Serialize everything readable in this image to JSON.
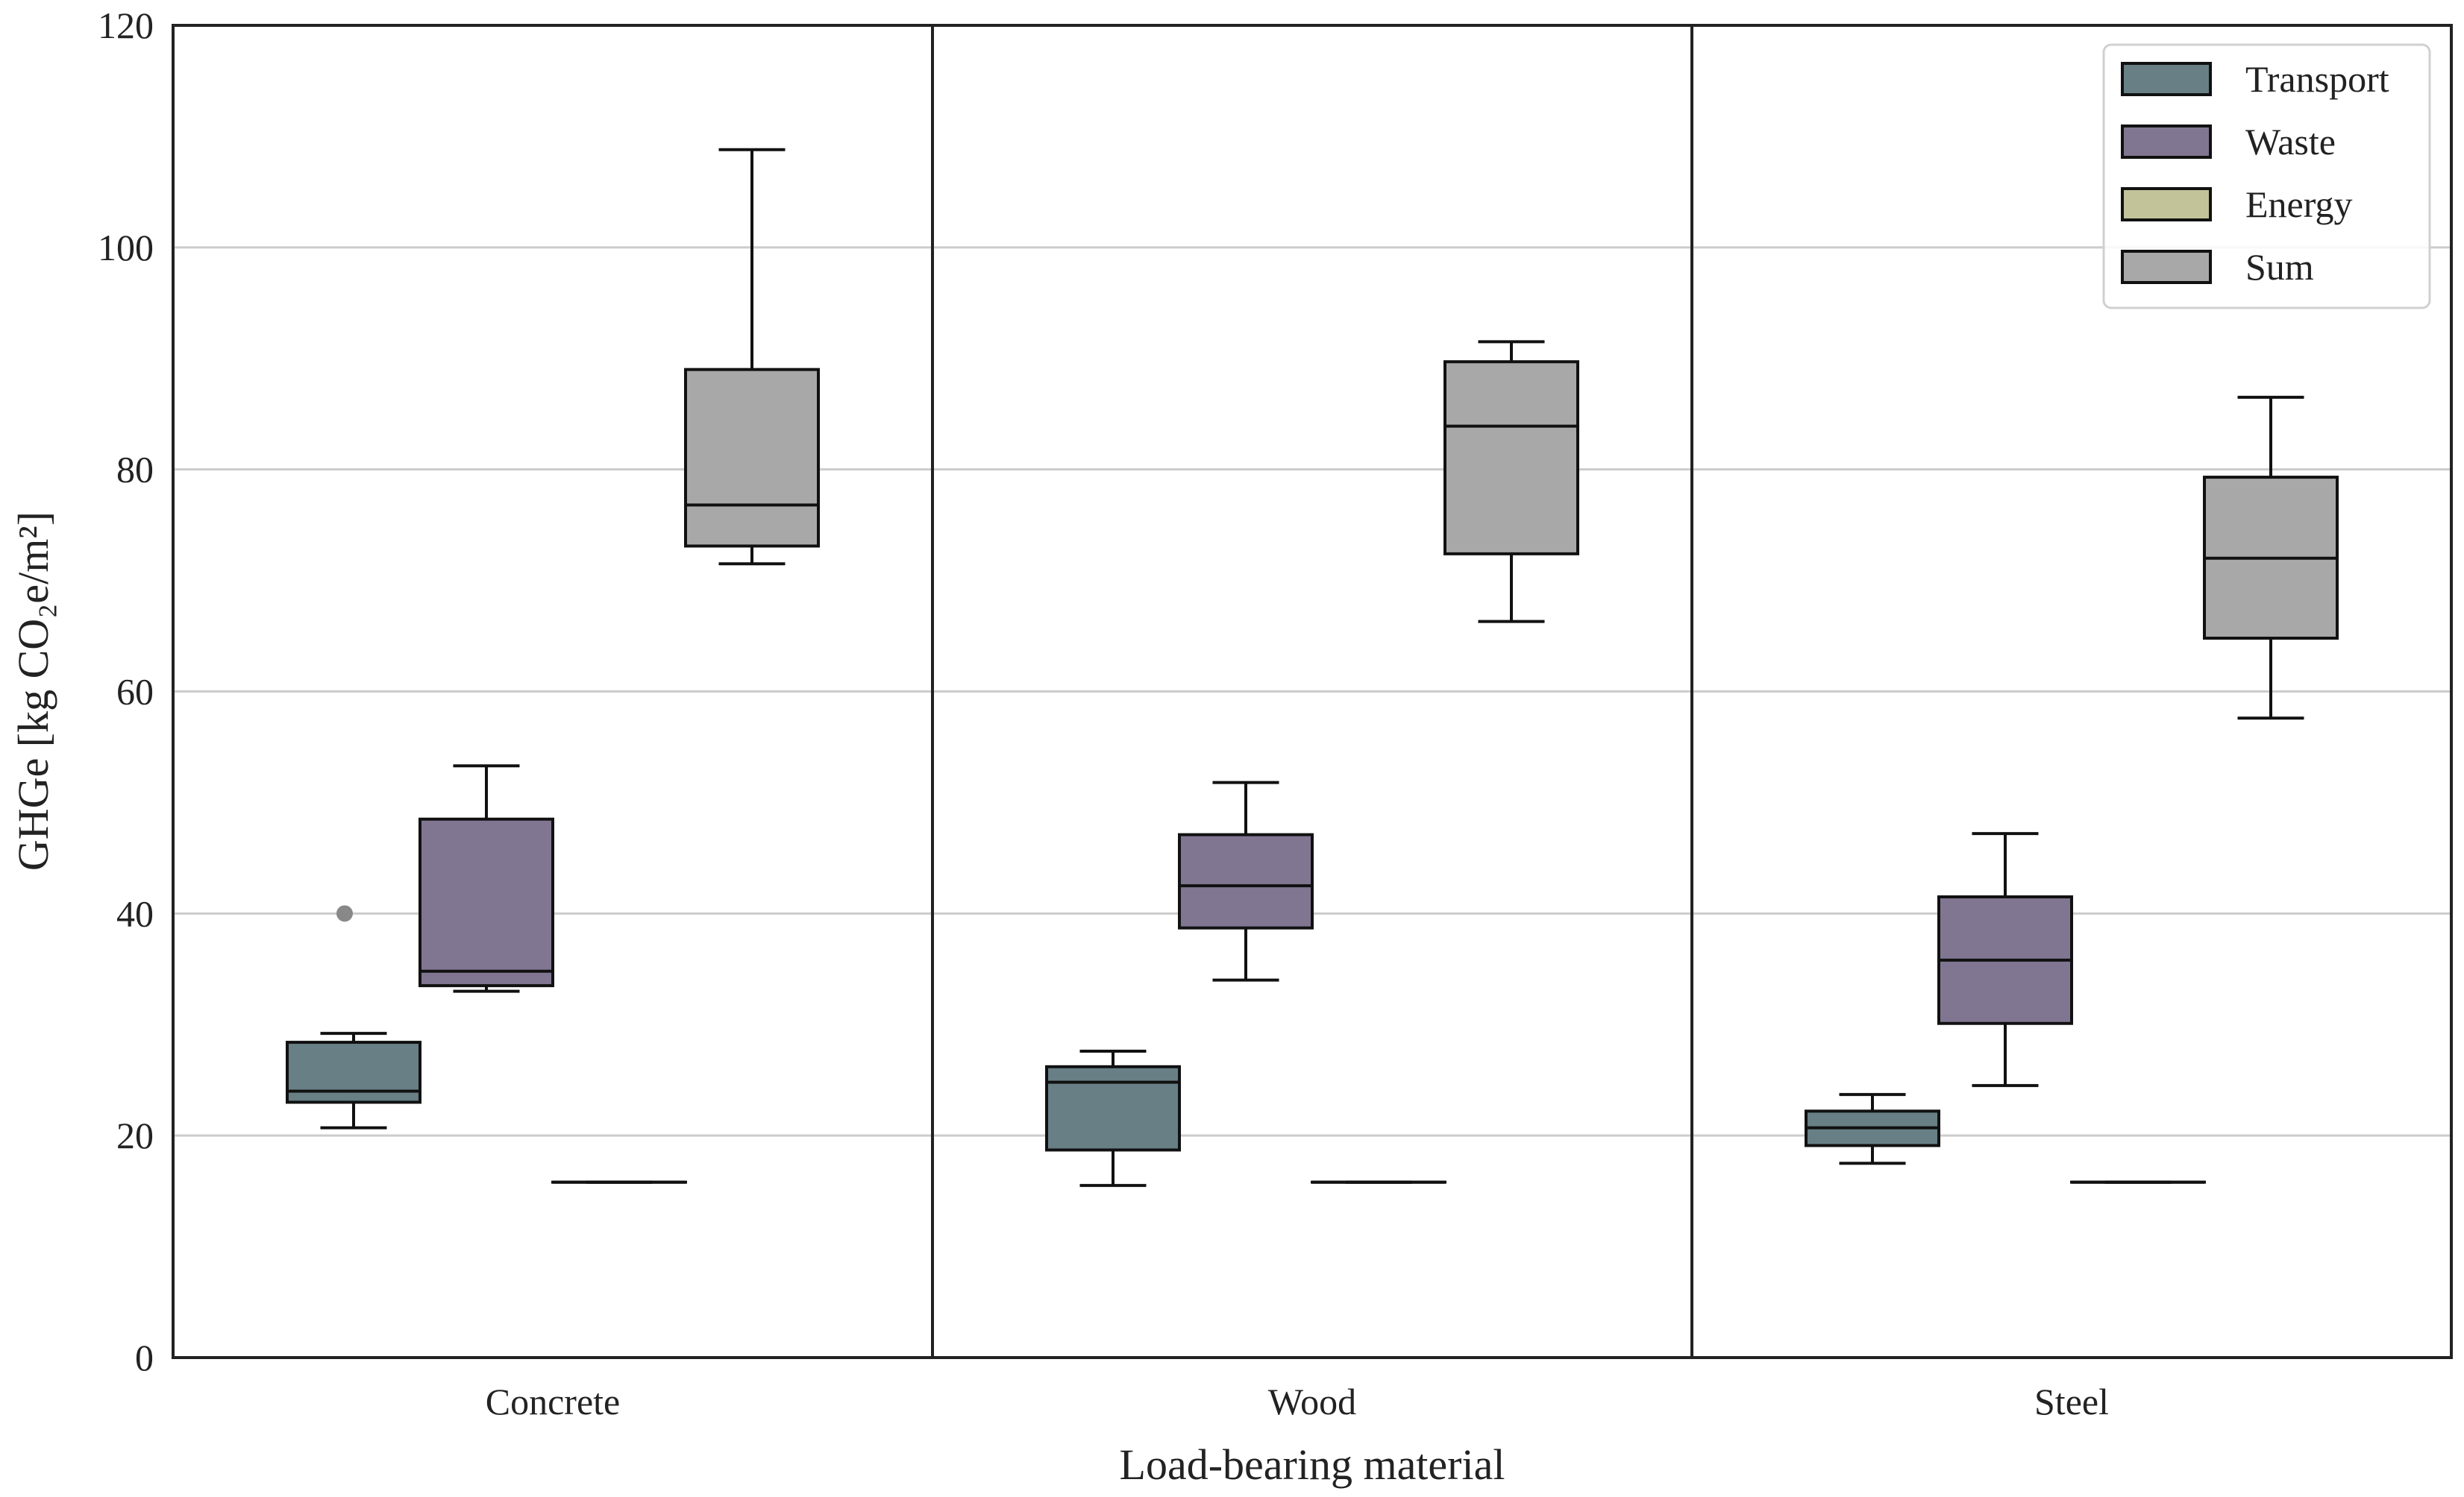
{
  "chart_data": {
    "type": "box",
    "title": "",
    "xlabel": "Load-bearing material",
    "ylabel": "GHGe [kg CO₂e/m²]",
    "ylim": [
      0,
      120
    ],
    "yticks": [
      "0",
      "20",
      "40",
      "60",
      "80",
      "100",
      "120"
    ],
    "grid": "horizontal",
    "legend_position": "top-right",
    "categories": [
      "Concrete",
      "Wood",
      "Steel"
    ],
    "series": [
      {
        "name": "Transport",
        "color": "#677f85",
        "boxes": [
          {
            "whislo": 20.7,
            "q1": 23.0,
            "med": 24.0,
            "q3": 28.4,
            "whishi": 29.2,
            "fliers": [
              40.0
            ]
          },
          {
            "whislo": 15.5,
            "q1": 18.7,
            "med": 24.8,
            "q3": 26.2,
            "whishi": 27.6,
            "fliers": []
          },
          {
            "whislo": 17.5,
            "q1": 19.1,
            "med": 20.7,
            "q3": 22.2,
            "whishi": 23.7,
            "fliers": []
          }
        ]
      },
      {
        "name": "Waste",
        "color": "#817691",
        "boxes": [
          {
            "whislo": 33.0,
            "q1": 33.5,
            "med": 34.8,
            "q3": 48.5,
            "whishi": 53.3,
            "fliers": []
          },
          {
            "whislo": 34.0,
            "q1": 38.7,
            "med": 42.5,
            "q3": 47.1,
            "whishi": 51.8,
            "fliers": []
          },
          {
            "whislo": 24.5,
            "q1": 30.1,
            "med": 35.8,
            "q3": 41.5,
            "whishi": 47.2,
            "fliers": []
          }
        ]
      },
      {
        "name": "Energy",
        "color": "#c3c39a",
        "boxes": [
          {
            "whislo": 15.8,
            "q1": 15.8,
            "med": 15.8,
            "q3": 15.8,
            "whishi": 15.8,
            "fliers": []
          },
          {
            "whislo": 15.8,
            "q1": 15.8,
            "med": 15.8,
            "q3": 15.8,
            "whishi": 15.8,
            "fliers": []
          },
          {
            "whislo": 15.8,
            "q1": 15.8,
            "med": 15.8,
            "q3": 15.8,
            "whishi": 15.8,
            "fliers": []
          }
        ]
      },
      {
        "name": "Sum",
        "color": "#a8a8a8",
        "boxes": [
          {
            "whislo": 71.5,
            "q1": 73.1,
            "med": 76.8,
            "q3": 89.0,
            "whishi": 108.8,
            "fliers": []
          },
          {
            "whislo": 66.3,
            "q1": 72.4,
            "med": 83.9,
            "q3": 89.7,
            "whishi": 91.5,
            "fliers": []
          },
          {
            "whislo": 57.6,
            "q1": 64.8,
            "med": 72.0,
            "q3": 79.3,
            "whishi": 86.5,
            "fliers": []
          }
        ]
      }
    ]
  }
}
